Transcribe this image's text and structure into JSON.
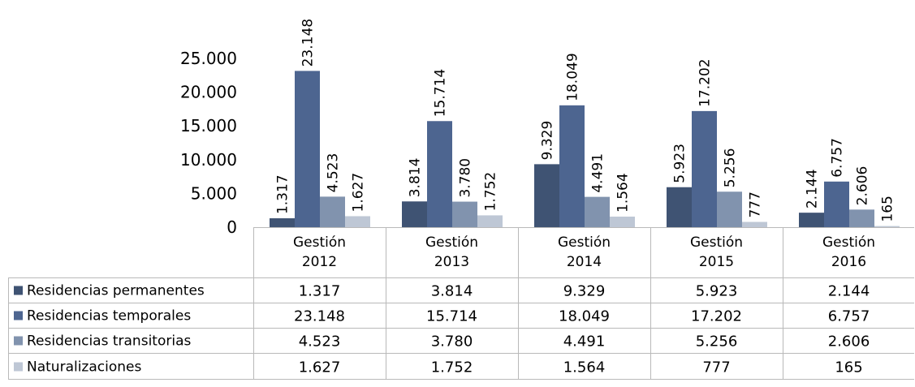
{
  "chart_data": {
    "type": "bar",
    "categories": [
      "Gestión 2012",
      "Gestión 2013",
      "Gestión 2014",
      "Gestión 2015",
      "Gestión 2016"
    ],
    "category_lines": [
      [
        "Gestión",
        "2012"
      ],
      [
        "Gestión",
        "2013"
      ],
      [
        "Gestión",
        "2014"
      ],
      [
        "Gestión",
        "2015"
      ],
      [
        "Gestión",
        "2016"
      ]
    ],
    "series": [
      {
        "name": "Residencias permanentes",
        "values": [
          1317,
          3814,
          9329,
          5923,
          2144
        ],
        "labels": [
          "1.317",
          "3.814",
          "9.329",
          "5.923",
          "2.144"
        ],
        "color": "#3f5373"
      },
      {
        "name": "Residencias temporales",
        "values": [
          23148,
          15714,
          18049,
          17202,
          6757
        ],
        "labels": [
          "23.148",
          "15.714",
          "18.049",
          "17.202",
          "6.757"
        ],
        "color": "#4d6590"
      },
      {
        "name": "Residencias transitorias",
        "values": [
          4523,
          3780,
          4491,
          5256,
          2606
        ],
        "labels": [
          "4.523",
          "3.780",
          "4.491",
          "5.256",
          "2.606"
        ],
        "color": "#8193ae"
      },
      {
        "name": "Naturalizaciones",
        "values": [
          1627,
          1752,
          1564,
          777,
          165
        ],
        "labels": [
          "1.627",
          "1.752",
          "1.564",
          "777",
          "165"
        ],
        "color": "#bec7d5"
      }
    ],
    "yticks": [
      0,
      5000,
      10000,
      15000,
      20000,
      25000
    ],
    "ytick_labels": [
      "0",
      "5.000",
      "10.000",
      "15.000",
      "20.000",
      "25.000"
    ],
    "ylim": [
      0,
      25000
    ],
    "grid": false,
    "legend": "data-table",
    "title": "",
    "xlabel": "",
    "ylabel": ""
  }
}
